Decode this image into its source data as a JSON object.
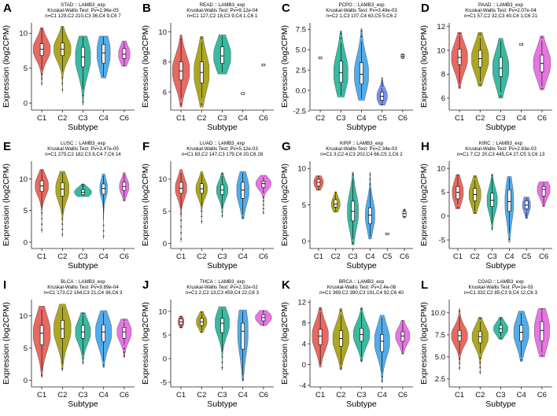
{
  "colors": {
    "C1": "#e5625a",
    "C2": "#a8a118",
    "C3": "#2fb59b",
    "C4": "#4aa6e8",
    "C5": "#6e8cf2",
    "C6": "#e46fe0"
  },
  "chart_data": [
    {
      "type": "violin",
      "label": "A",
      "title": "STAD :: LAMB3_exp",
      "test": "Kruskal-Wallis Test: Pv=2.96e-05",
      "counts": "n=C1 129,C2 210,C3 36,C4 9,C6 7",
      "xlabel": "Subtype",
      "ylabel": "Expression (log2CPM)",
      "ylim": [
        -1,
        11.5
      ],
      "yticks": [
        0,
        5,
        10
      ],
      "groups": [
        {
          "name": "C1",
          "q1": 6.8,
          "median": 7.7,
          "q3": 8.5,
          "min": 4.8,
          "max": 10.8,
          "lo": 2.5,
          "hi": 10.8,
          "w": 0.9
        },
        {
          "name": "C2",
          "q1": 6.8,
          "median": 7.7,
          "q3": 8.6,
          "min": 4.5,
          "max": 11.0,
          "lo": 1.5,
          "hi": 11.0,
          "w": 0.9
        },
        {
          "name": "C3",
          "q1": 5.2,
          "median": 6.6,
          "q3": 8.0,
          "min": 2.0,
          "max": 9.5,
          "lo": -0.3,
          "hi": 9.6,
          "w": 0.8
        },
        {
          "name": "C4",
          "q1": 5.7,
          "median": 7.2,
          "q3": 8.4,
          "min": 3.8,
          "max": 9.5,
          "lo": 3.6,
          "hi": 9.6,
          "w": 0.7
        },
        {
          "name": "C6",
          "q1": 6.4,
          "median": 7.0,
          "q3": 7.8,
          "min": 5.5,
          "max": 8.8,
          "lo": 5.3,
          "hi": 8.9,
          "w": 0.6
        }
      ]
    },
    {
      "type": "violin",
      "label": "B",
      "title": "READ :: LAMB3_exp",
      "test": "Kruskal-Wallis Test: Pv=9.12e-04",
      "counts": "n=C1 127,C2 18,C3 9,C4 1,C6 1",
      "xlabel": "Subtype",
      "ylabel": "Expression (log2CPM)",
      "ylim": [
        4.8,
        10.6
      ],
      "yticks": [
        6,
        8,
        10
      ],
      "groups": [
        {
          "name": "C1",
          "q1": 6.8,
          "median": 7.4,
          "q3": 8.0,
          "min": 5.6,
          "max": 9.6,
          "lo": 5.0,
          "hi": 9.8,
          "w": 0.9
        },
        {
          "name": "C2",
          "q1": 6.6,
          "median": 7.3,
          "q3": 8.0,
          "min": 5.6,
          "max": 9.3,
          "lo": 5.0,
          "hi": 9.7,
          "w": 0.8
        },
        {
          "name": "C3",
          "q1": 7.9,
          "median": 8.4,
          "q3": 9.0,
          "min": 7.3,
          "max": 9.7,
          "lo": 7.2,
          "hi": 9.8,
          "w": 0.9
        },
        {
          "name": "C4",
          "point": 5.9
        },
        {
          "name": "C6",
          "point": 7.8
        }
      ]
    },
    {
      "type": "violin",
      "label": "C",
      "title": "PCPG :: LAMB3_exp",
      "test": "Kruskal-Wallis Test: Pv=3.49e-03",
      "counts": "n=C2 1,C3 107,C4 63,C5 5,C6 2",
      "xlabel": "Subtype",
      "ylabel": "Expression (log2CPM)",
      "ylim": [
        -2.4,
        8.3
      ],
      "yticks": [
        -2.5,
        0,
        2.5,
        5,
        7.5
      ],
      "groups": [
        {
          "name": "C2",
          "point": 4.0
        },
        {
          "name": "C3",
          "q1": 1.0,
          "median": 2.2,
          "q3": 3.6,
          "min": -0.6,
          "max": 5.8,
          "lo": -0.8,
          "hi": 7.3,
          "w": 0.75
        },
        {
          "name": "C4",
          "q1": 0.8,
          "median": 2.0,
          "q3": 3.4,
          "min": -1.0,
          "max": 6.0,
          "lo": -1.2,
          "hi": 7.6,
          "w": 0.75
        },
        {
          "name": "C5",
          "q1": -1.2,
          "median": -0.7,
          "q3": -0.2,
          "min": -1.5,
          "max": 0.3,
          "lo": -1.8,
          "hi": 1.6,
          "w": 0.55
        },
        {
          "name": "C6",
          "q1": 4.0,
          "median": 4.2,
          "q3": 4.4,
          "min": 3.9,
          "max": 4.5,
          "lo": 3.9,
          "hi": 4.5,
          "w": 0.15
        }
      ]
    },
    {
      "type": "violin",
      "label": "D",
      "title": "PAAD :: LAMB3_exp",
      "test": "Kruskal-Wallis Test: Pv=2.07e-04",
      "counts": "n=C1 57,C2 32,C3 40,C4 1,C6 21",
      "xlabel": "Subtype",
      "ylabel": "Expression (log2CPM)",
      "ylim": [
        5.0,
        12.3
      ],
      "yticks": [
        6,
        8,
        10,
        12
      ],
      "groups": [
        {
          "name": "C1",
          "q1": 8.8,
          "median": 9.4,
          "q3": 10.1,
          "min": 7.2,
          "max": 11.2,
          "lo": 6.8,
          "hi": 11.5,
          "w": 0.85
        },
        {
          "name": "C2",
          "q1": 8.6,
          "median": 9.3,
          "q3": 10.0,
          "min": 7.4,
          "max": 11.0,
          "lo": 7.0,
          "hi": 11.5,
          "w": 0.9
        },
        {
          "name": "C3",
          "q1": 7.8,
          "median": 8.5,
          "q3": 9.4,
          "min": 6.5,
          "max": 10.8,
          "lo": 6.0,
          "hi": 11.0,
          "w": 0.85
        },
        {
          "name": "C4",
          "point": 10.5
        },
        {
          "name": "C6",
          "q1": 8.2,
          "median": 8.9,
          "q3": 9.6,
          "min": 7.0,
          "max": 10.8,
          "lo": 6.7,
          "hi": 11.2,
          "w": 0.9
        }
      ]
    },
    {
      "type": "violin",
      "label": "E",
      "title": "LUSC :: LAMB3_exp",
      "test": "Kruskal-Wallis Test: Pv=3.47e-05",
      "counts": "n=C1 275,C2 182,C3 8,C4 7,C6 14",
      "xlabel": "Subtype",
      "ylabel": "Expression (log2CPM)",
      "ylim": [
        -1,
        12.8
      ],
      "yticks": [
        0,
        5,
        10
      ],
      "groups": [
        {
          "name": "C1",
          "q1": 8.0,
          "median": 8.9,
          "q3": 9.7,
          "min": 5.5,
          "max": 11.5,
          "lo": 1.5,
          "hi": 11.5,
          "w": 0.7
        },
        {
          "name": "C2",
          "q1": 7.3,
          "median": 8.4,
          "q3": 9.4,
          "min": 4.5,
          "max": 11.0,
          "lo": 0.8,
          "hi": 11.2,
          "w": 0.7
        },
        {
          "name": "C3",
          "q1": 7.5,
          "median": 7.9,
          "q3": 8.3,
          "min": 7.3,
          "max": 8.6,
          "lo": 7.2,
          "hi": 9.2,
          "w": 0.9
        },
        {
          "name": "C4",
          "q1": 7.6,
          "median": 8.5,
          "q3": 9.2,
          "min": 3.5,
          "max": 10.5,
          "lo": 0.5,
          "hi": 10.8,
          "w": 0.4
        },
        {
          "name": "C6",
          "q1": 8.2,
          "median": 8.8,
          "q3": 9.5,
          "min": 7.0,
          "max": 10.8,
          "lo": 6.5,
          "hi": 11.0,
          "w": 0.5
        }
      ]
    },
    {
      "type": "violin",
      "label": "F",
      "title": "LUAD :: LAMB3_exp",
      "test": "Kruskal-Wallis Test: Pv=5.12e-03",
      "counts": "n=C1 83,C2 147,C3 179,C4 20,C6 28",
      "xlabel": "Subtype",
      "ylabel": "Expression (log2CPM)",
      "ylim": [
        -0.8,
        12.8
      ],
      "yticks": [
        0,
        5,
        10
      ],
      "groups": [
        {
          "name": "C1",
          "q1": 7.8,
          "median": 8.6,
          "q3": 9.5,
          "min": 5.5,
          "max": 11.0,
          "lo": 0.2,
          "hi": 11.5,
          "w": 0.6
        },
        {
          "name": "C2",
          "q1": 7.8,
          "median": 8.5,
          "q3": 9.3,
          "min": 5.8,
          "max": 10.8,
          "lo": 3.0,
          "hi": 11.2,
          "w": 0.6
        },
        {
          "name": "C3",
          "q1": 7.6,
          "median": 8.3,
          "q3": 9.1,
          "min": 5.5,
          "max": 10.5,
          "lo": 4.0,
          "hi": 11.0,
          "w": 0.6
        },
        {
          "name": "C4",
          "q1": 7.0,
          "median": 8.3,
          "q3": 9.5,
          "min": 4.5,
          "max": 11.0,
          "lo": 3.8,
          "hi": 11.2,
          "w": 0.65
        },
        {
          "name": "C6",
          "q1": 8.7,
          "median": 9.3,
          "q3": 9.7,
          "min": 7.8,
          "max": 10.3,
          "lo": 4.5,
          "hi": 10.6,
          "w": 0.8
        }
      ]
    },
    {
      "type": "violin",
      "label": "G",
      "title": "KIRP :: LAMB3_exp",
      "test": "Kruskal-Wallis Test: Pv=2.34e-03",
      "counts": "n=C1 3,C2 4,C3 202,C4 66,C5 2,C6 2",
      "xlabel": "Subtype",
      "ylabel": "Expression (log2CPM)",
      "ylim": [
        -1,
        11
      ],
      "yticks": [
        0,
        5,
        10
      ],
      "groups": [
        {
          "name": "C1",
          "q1": 7.6,
          "median": 8.1,
          "q3": 8.5,
          "min": 7.3,
          "max": 8.8,
          "lo": 7.0,
          "hi": 9.0,
          "w": 0.6
        },
        {
          "name": "C2",
          "q1": 4.7,
          "median": 5.1,
          "q3": 5.7,
          "min": 4.3,
          "max": 6.5,
          "lo": 4.0,
          "hi": 6.8,
          "w": 0.55
        },
        {
          "name": "C3",
          "q1": 2.8,
          "median": 4.1,
          "q3": 5.5,
          "min": 0.3,
          "max": 8.5,
          "lo": -0.5,
          "hi": 9.5,
          "w": 0.7
        },
        {
          "name": "C4",
          "q1": 2.4,
          "median": 3.6,
          "q3": 4.6,
          "min": 0.6,
          "max": 7.2,
          "lo": 0.3,
          "hi": 9.5,
          "w": 0.6
        },
        {
          "name": "C5",
          "point": 1.0
        },
        {
          "name": "C6",
          "q1": 3.4,
          "median": 3.8,
          "q3": 4.1,
          "min": 3.2,
          "max": 4.3,
          "lo": 3.2,
          "hi": 4.4,
          "w": 0.2
        }
      ]
    },
    {
      "type": "violin",
      "label": "H",
      "title": "KIRC :: LAMB3_exp",
      "test": "Kruskal-Wallis Test: Pv=2.83e-03",
      "counts": "n=C1 7,C2 20,C3 445,C4 27,C5 3,C6 13",
      "xlabel": "Subtype",
      "ylabel": "Expression (log2CPM)",
      "ylim": [
        -6.8,
        11.5
      ],
      "yticks": [
        -5,
        0,
        5,
        10
      ],
      "groups": [
        {
          "name": "C1",
          "q1": 3.6,
          "median": 5.0,
          "q3": 6.2,
          "min": 2.5,
          "max": 8.3,
          "lo": 1.5,
          "hi": 8.7,
          "w": 0.7
        },
        {
          "name": "C2",
          "q1": 3.2,
          "median": 4.5,
          "q3": 5.8,
          "min": 1.0,
          "max": 7.5,
          "lo": 0.5,
          "hi": 8.5,
          "w": 0.75
        },
        {
          "name": "C3",
          "q1": 2.0,
          "median": 3.3,
          "q3": 4.8,
          "min": -1.5,
          "max": 8.0,
          "lo": -3.0,
          "hi": 8.8,
          "w": 0.65
        },
        {
          "name": "C4",
          "q1": 1.0,
          "median": 3.0,
          "q3": 5.5,
          "min": -3.5,
          "max": 8.0,
          "lo": -5.5,
          "hi": 8.3,
          "w": 0.55
        },
        {
          "name": "C5",
          "q1": 1.5,
          "median": 2.3,
          "q3": 3.2,
          "min": 1.0,
          "max": 3.8,
          "lo": -0.5,
          "hi": 4.0,
          "w": 0.5
        },
        {
          "name": "C6",
          "q1": 4.2,
          "median": 5.6,
          "q3": 6.2,
          "min": 2.5,
          "max": 7.0,
          "lo": 2.0,
          "hi": 7.2,
          "w": 0.8
        }
      ]
    },
    {
      "type": "violin",
      "label": "I",
      "title": "BLCA :: LAMB3_exp",
      "test": "Kruskal-Wallis Test: Pv=9.89e-04",
      "counts": "n=C1 173,C2 164,C3 21,C4 36,C6 3",
      "xlabel": "Subtype",
      "ylabel": "Expression (log2CPM)",
      "ylim": [
        -1,
        12.5
      ],
      "yticks": [
        0,
        5,
        10
      ],
      "groups": [
        {
          "name": "C1",
          "q1": 5.5,
          "median": 7.3,
          "q3": 8.5,
          "min": 1.5,
          "max": 11.0,
          "lo": 0.5,
          "hi": 11.5,
          "w": 0.9
        },
        {
          "name": "C2",
          "q1": 6.5,
          "median": 8.0,
          "q3": 9.3,
          "min": 2.5,
          "max": 11.3,
          "lo": 1.5,
          "hi": 11.8,
          "w": 0.9
        },
        {
          "name": "C3",
          "q1": 6.5,
          "median": 7.5,
          "q3": 8.5,
          "min": 4.0,
          "max": 10.0,
          "lo": 2.5,
          "hi": 10.5,
          "w": 0.8
        },
        {
          "name": "C4",
          "q1": 6.0,
          "median": 7.5,
          "q3": 8.6,
          "min": 3.0,
          "max": 10.5,
          "lo": 2.0,
          "hi": 10.8,
          "w": 0.85
        },
        {
          "name": "C6",
          "q1": 6.5,
          "median": 7.5,
          "q3": 8.2,
          "min": 5.5,
          "max": 9.0,
          "lo": 3.5,
          "hi": 9.5,
          "w": 0.75
        }
      ]
    },
    {
      "type": "violin",
      "label": "J",
      "title": "THCA :: LAMB3_exp",
      "test": "Kruskal-Wallis Test: Pv=2.32e-02",
      "counts": "n=C1 2,C2 13,C3 459,C4 22,C6 3",
      "xlabel": "Subtype",
      "ylabel": "Expression (log2CPM)",
      "ylim": [
        -6,
        12.5
      ],
      "yticks": [
        -5,
        0,
        5,
        10
      ],
      "groups": [
        {
          "name": "C1",
          "q1": 7.2,
          "median": 7.8,
          "q3": 8.4,
          "min": 6.8,
          "max": 8.8,
          "lo": 6.5,
          "hi": 9.0,
          "w": 0.3
        },
        {
          "name": "C2",
          "q1": 7.0,
          "median": 7.8,
          "q3": 8.5,
          "min": 6.0,
          "max": 9.5,
          "lo": 5.5,
          "hi": 10.0,
          "w": 0.55
        },
        {
          "name": "C3",
          "q1": 5.5,
          "median": 7.5,
          "q3": 8.5,
          "min": 1.5,
          "max": 10.5,
          "lo": -2.5,
          "hi": 11.0,
          "w": 0.75
        },
        {
          "name": "C4",
          "q1": 2.0,
          "median": 5.8,
          "q3": 7.5,
          "min": -3.5,
          "max": 10.0,
          "lo": -4.8,
          "hi": 10.3,
          "w": 0.55
        },
        {
          "name": "C6",
          "q1": 8.0,
          "median": 8.7,
          "q3": 9.3,
          "min": 7.3,
          "max": 9.8,
          "lo": 7.0,
          "hi": 10.2,
          "w": 0.85
        }
      ]
    },
    {
      "type": "violin",
      "label": "K",
      "title": "BRCA :: LAMB3_exp",
      "test": "Kruskal-Wallis Test: Pv=2.4e-08",
      "counts": "n=C1 369,C2 390,C3 191,C4 92,C6 40",
      "xlabel": "Subtype",
      "ylabel": "Expression (log2CPM)",
      "ylim": [
        -4.3,
        12.5
      ],
      "yticks": [
        -4,
        0,
        4,
        8,
        12
      ],
      "groups": [
        {
          "name": "C1",
          "q1": 3.8,
          "median": 5.5,
          "q3": 6.8,
          "min": 0,
          "max": 10.0,
          "lo": -0.5,
          "hi": 11.0,
          "w": 0.85
        },
        {
          "name": "C2",
          "q1": 3.5,
          "median": 5.0,
          "q3": 6.5,
          "min": 0,
          "max": 9.5,
          "lo": -1.0,
          "hi": 10.8,
          "w": 0.85
        },
        {
          "name": "C3",
          "q1": 4.5,
          "median": 5.8,
          "q3": 7.0,
          "min": 1.5,
          "max": 10.0,
          "lo": 0.5,
          "hi": 11.0,
          "w": 0.85
        },
        {
          "name": "C4",
          "q1": 2.5,
          "median": 4.5,
          "q3": 5.8,
          "min": -1.5,
          "max": 9.0,
          "lo": -3.5,
          "hi": 9.5,
          "w": 0.8
        },
        {
          "name": "C6",
          "q1": 4.5,
          "median": 5.5,
          "q3": 6.3,
          "min": 2.5,
          "max": 8.0,
          "lo": 2.0,
          "hi": 8.5,
          "w": 0.75
        }
      ]
    },
    {
      "type": "violin",
      "label": "L",
      "title": "COAD :: LAMB3_exp",
      "test": "Kruskal-Wallis Test: Pv=1e-03",
      "counts": "n=C1 332,C2 85,C3 9,C4 12,C6 3",
      "xlabel": "Subtype",
      "ylabel": "Expression (log2CPM)",
      "ylim": [
        1.6,
        11.5
      ],
      "yticks": [
        2.5,
        5.0,
        7.5,
        10.0
      ],
      "groups": [
        {
          "name": "C1",
          "q1": 6.8,
          "median": 7.4,
          "q3": 8.0,
          "min": 5.3,
          "max": 9.6,
          "lo": 3.5,
          "hi": 10.5,
          "w": 0.85
        },
        {
          "name": "C2",
          "q1": 6.6,
          "median": 7.3,
          "q3": 7.9,
          "min": 5.4,
          "max": 9.0,
          "lo": 3.0,
          "hi": 9.5,
          "w": 0.85
        },
        {
          "name": "C3",
          "q1": 7.8,
          "median": 8.2,
          "q3": 8.6,
          "min": 7.3,
          "max": 9.0,
          "lo": 7.0,
          "hi": 9.5,
          "w": 0.75
        },
        {
          "name": "C4",
          "q1": 6.8,
          "median": 7.8,
          "q3": 8.6,
          "min": 5.0,
          "max": 10.0,
          "lo": 4.5,
          "hi": 10.2,
          "w": 0.8
        },
        {
          "name": "C6",
          "q1": 6.8,
          "median": 8.0,
          "q3": 9.0,
          "min": 5.5,
          "max": 10.2,
          "lo": 5.0,
          "hi": 10.5,
          "w": 0.8
        }
      ]
    }
  ]
}
